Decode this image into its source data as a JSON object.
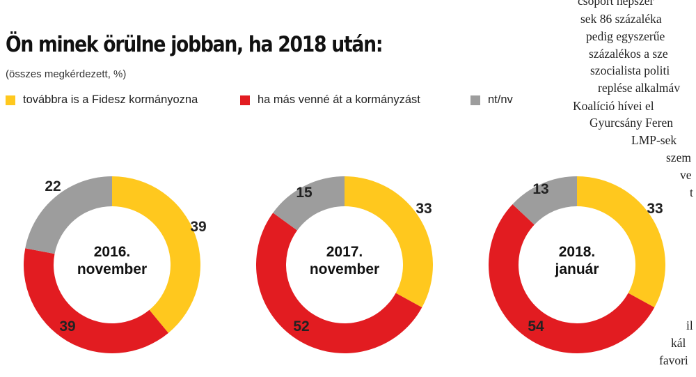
{
  "title": "Ön minek örülne jobban, ha 2018 után:",
  "subtitle": "(összes megkérdezett, %)",
  "legend": [
    {
      "label": "továbbra is a Fidesz kormányozna",
      "color": "#FFC81E"
    },
    {
      "label": "ha más venné át a kormányzást",
      "color": "#E21C21"
    },
    {
      "label": "nt/nv",
      "color": "#9D9D9D"
    }
  ],
  "chart_data": {
    "type": "donut",
    "series_names": [
      "továbbra is a Fidesz kormányozna",
      "ha más venné át a kormányzást",
      "nt/nv"
    ],
    "colors": [
      "#FFC81E",
      "#E21C21",
      "#9D9D9D"
    ],
    "charts": [
      {
        "center_label": [
          "2016.",
          "november"
        ],
        "values": [
          39,
          39,
          22
        ]
      },
      {
        "center_label": [
          "2017.",
          "november"
        ],
        "values": [
          33,
          52,
          15
        ]
      },
      {
        "center_label": [
          "2018.",
          "január"
        ],
        "values": [
          33,
          54,
          13
        ]
      }
    ]
  },
  "background_article_fragments": [
    "csoport népszer",
    "sek 86 százaléka",
    "pedig egyszerűe",
    "százalékos a sze",
    "szocialista politi",
    "replése alkalmáv",
    "Koalíció hívei el",
    "Gyurcsány Feren",
    "LMP-sek",
    "szem",
    "ve",
    "t",
    "il",
    "kál",
    "favori"
  ]
}
